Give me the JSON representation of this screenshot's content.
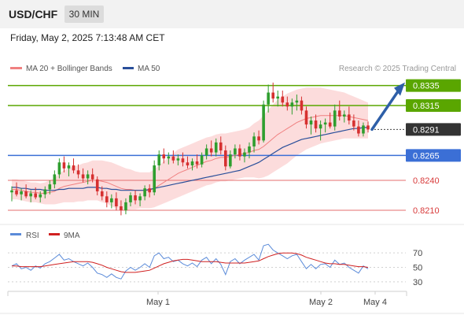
{
  "header": {
    "symbol": "USD/CHF",
    "timeframe": "30 MIN"
  },
  "datetime": "Friday, May 2, 2025 7:13:48 AM CET",
  "legend": {
    "ma20": "MA 20 + Bollinger Bands",
    "ma50": "MA 50",
    "credit": "Research © 2025 Trading Central"
  },
  "rsi_legend": {
    "rsi": "RSI",
    "ma9": "9MA"
  },
  "colors": {
    "resistance": "#5aa600",
    "support": "#3b6fd6",
    "pivot": "#e46f6f",
    "last": "#333333",
    "candle_up": "#2e9e2e",
    "candle_down": "#d63030",
    "ma20": "#f08080",
    "ma50": "#2a4f9a",
    "bands": "#fcd6d6",
    "arrow": "#2e5fa8",
    "rsi": "#5b8bd9",
    "rsi_ma": "#d02020"
  },
  "chart_data": [
    {
      "type": "line",
      "title": "USD/CHF 30 MIN",
      "xlabel": "",
      "ylabel": "",
      "ylim": [
        0.8199,
        0.8345
      ],
      "x_ticks": [
        "May 1",
        "May 2",
        "May 4"
      ],
      "ohlc": [
        [
          0.8228,
          0.8234,
          0.8219,
          0.823
        ],
        [
          0.823,
          0.8238,
          0.8224,
          0.8226
        ],
        [
          0.8226,
          0.8232,
          0.822,
          0.8229
        ],
        [
          0.8229,
          0.8236,
          0.8222,
          0.8224
        ],
        [
          0.8224,
          0.823,
          0.8218,
          0.8227
        ],
        [
          0.8227,
          0.8233,
          0.8221,
          0.8223
        ],
        [
          0.8223,
          0.8229,
          0.8218,
          0.8226
        ],
        [
          0.8226,
          0.8234,
          0.8222,
          0.8231
        ],
        [
          0.8231,
          0.824,
          0.8226,
          0.8236
        ],
        [
          0.8236,
          0.825,
          0.8232,
          0.8246
        ],
        [
          0.8246,
          0.8262,
          0.8242,
          0.8258
        ],
        [
          0.8258,
          0.8264,
          0.8248,
          0.8252
        ],
        [
          0.8252,
          0.8258,
          0.8244,
          0.8255
        ],
        [
          0.8255,
          0.8262,
          0.8247,
          0.825
        ],
        [
          0.825,
          0.8256,
          0.8242,
          0.8246
        ],
        [
          0.8246,
          0.8252,
          0.8238,
          0.8242
        ],
        [
          0.8242,
          0.825,
          0.8236,
          0.8246
        ],
        [
          0.8246,
          0.8252,
          0.8238,
          0.8241
        ],
        [
          0.8241,
          0.8244,
          0.8225,
          0.8229
        ],
        [
          0.8229,
          0.8234,
          0.822,
          0.8224
        ],
        [
          0.8224,
          0.8229,
          0.8213,
          0.8218
        ],
        [
          0.8218,
          0.8226,
          0.8212,
          0.8222
        ],
        [
          0.8222,
          0.8228,
          0.821,
          0.8214
        ],
        [
          0.8214,
          0.822,
          0.8205,
          0.821
        ],
        [
          0.821,
          0.8222,
          0.8206,
          0.8218
        ],
        [
          0.8218,
          0.8228,
          0.8214,
          0.8225
        ],
        [
          0.8225,
          0.823,
          0.8216,
          0.822
        ],
        [
          0.822,
          0.8227,
          0.8214,
          0.8224
        ],
        [
          0.8224,
          0.8235,
          0.822,
          0.8232
        ],
        [
          0.8232,
          0.8236,
          0.8223,
          0.8228
        ],
        [
          0.8228,
          0.826,
          0.8225,
          0.8255
        ],
        [
          0.8255,
          0.827,
          0.825,
          0.8266
        ],
        [
          0.8266,
          0.8272,
          0.8257,
          0.8262
        ],
        [
          0.8262,
          0.8268,
          0.8256,
          0.8264
        ],
        [
          0.8264,
          0.827,
          0.8257,
          0.826
        ],
        [
          0.826,
          0.8266,
          0.8255,
          0.8262
        ],
        [
          0.8262,
          0.8268,
          0.8254,
          0.8258
        ],
        [
          0.8258,
          0.8264,
          0.8252,
          0.8255
        ],
        [
          0.8255,
          0.8262,
          0.825,
          0.8259
        ],
        [
          0.8259,
          0.8266,
          0.8252,
          0.8256
        ],
        [
          0.8256,
          0.8268,
          0.8253,
          0.8265
        ],
        [
          0.8265,
          0.8276,
          0.8261,
          0.8272
        ],
        [
          0.8272,
          0.828,
          0.8264,
          0.8268
        ],
        [
          0.8268,
          0.8282,
          0.8264,
          0.8278
        ],
        [
          0.8278,
          0.8284,
          0.8266,
          0.827
        ],
        [
          0.827,
          0.8275,
          0.825,
          0.8254
        ],
        [
          0.8254,
          0.827,
          0.8252,
          0.8266
        ],
        [
          0.8266,
          0.8276,
          0.8262,
          0.8272
        ],
        [
          0.8272,
          0.8276,
          0.826,
          0.8264
        ],
        [
          0.8264,
          0.8272,
          0.8258,
          0.8268
        ],
        [
          0.8268,
          0.8278,
          0.8262,
          0.8274
        ],
        [
          0.8274,
          0.8288,
          0.8268,
          0.8284
        ],
        [
          0.8284,
          0.829,
          0.8276,
          0.828
        ],
        [
          0.828,
          0.832,
          0.8278,
          0.8316
        ],
        [
          0.8316,
          0.8336,
          0.8308,
          0.8328
        ],
        [
          0.8328,
          0.8338,
          0.8318,
          0.8322
        ],
        [
          0.8322,
          0.833,
          0.8314,
          0.8324
        ],
        [
          0.8324,
          0.833,
          0.8314,
          0.8318
        ],
        [
          0.8318,
          0.8324,
          0.831,
          0.8314
        ],
        [
          0.8314,
          0.8322,
          0.8306,
          0.8318
        ],
        [
          0.8318,
          0.8326,
          0.831,
          0.832
        ],
        [
          0.832,
          0.8324,
          0.8306,
          0.831
        ],
        [
          0.831,
          0.8314,
          0.8292,
          0.8296
        ],
        [
          0.8296,
          0.8304,
          0.8286,
          0.83
        ],
        [
          0.83,
          0.8306,
          0.8288,
          0.8292
        ],
        [
          0.8292,
          0.83,
          0.828,
          0.8296
        ],
        [
          0.8296,
          0.8302,
          0.8288,
          0.8298
        ],
        [
          0.8298,
          0.8308,
          0.8292,
          0.8294
        ],
        [
          0.8294,
          0.8316,
          0.829,
          0.831
        ],
        [
          0.831,
          0.832,
          0.83,
          0.8304
        ],
        [
          0.8304,
          0.831,
          0.8298,
          0.8306
        ],
        [
          0.8306,
          0.8314,
          0.8296,
          0.83
        ],
        [
          0.83,
          0.8306,
          0.829,
          0.8294
        ],
        [
          0.8294,
          0.83,
          0.8284,
          0.8287
        ],
        [
          0.8287,
          0.8298,
          0.8284,
          0.8295
        ],
        [
          0.8295,
          0.8299,
          0.8288,
          0.8291
        ]
      ],
      "series": [
        {
          "name": "MA 20 + Bollinger Bands",
          "values": [
            0.8231,
            0.8231,
            0.823,
            0.8229,
            0.8228,
            0.8228,
            0.8227,
            0.8227,
            0.8228,
            0.8229,
            0.8232,
            0.8234,
            0.8235,
            0.8236,
            0.8237,
            0.8238,
            0.8239,
            0.824,
            0.824,
            0.8239,
            0.8238,
            0.8236,
            0.8234,
            0.8232,
            0.8231,
            0.8231,
            0.823,
            0.823,
            0.823,
            0.823,
            0.8232,
            0.8235,
            0.8238,
            0.8241,
            0.8244,
            0.8247,
            0.8249,
            0.8251,
            0.8253,
            0.8255,
            0.8257,
            0.8259,
            0.826,
            0.8262,
            0.8263,
            0.8263,
            0.8264,
            0.8265,
            0.8266,
            0.8267,
            0.8268,
            0.827,
            0.8271,
            0.8274,
            0.8278,
            0.8282,
            0.8286,
            0.8289,
            0.8292,
            0.8295,
            0.8298,
            0.83,
            0.8302,
            0.8303,
            0.8304,
            0.8305,
            0.8305,
            0.8305,
            0.8305,
            0.8305,
            0.8305,
            0.8304,
            0.8303,
            0.8302,
            0.8301,
            0.83
          ]
        },
        {
          "name": "MA 50",
          "values": [
            0.8233,
            0.8233,
            0.8232,
            0.8232,
            0.8231,
            0.8231,
            0.8231,
            0.823,
            0.823,
            0.823,
            0.8231,
            0.8231,
            0.8232,
            0.8232,
            0.8232,
            0.8232,
            0.8233,
            0.8233,
            0.8233,
            0.8232,
            0.8232,
            0.8231,
            0.8231,
            0.823,
            0.823,
            0.823,
            0.823,
            0.823,
            0.823,
            0.8231,
            0.8232,
            0.8233,
            0.8234,
            0.8235,
            0.8236,
            0.8237,
            0.8238,
            0.8239,
            0.824,
            0.8241,
            0.8242,
            0.8243,
            0.8244,
            0.8245,
            0.8246,
            0.8247,
            0.8248,
            0.8249,
            0.825,
            0.8252,
            0.8254,
            0.8256,
            0.8258,
            0.8261,
            0.8264,
            0.8267,
            0.827,
            0.8273,
            0.8275,
            0.8277,
            0.8279,
            0.8281,
            0.8282,
            0.8283,
            0.8284,
            0.8285,
            0.8286,
            0.8287,
            0.8288,
            0.8289,
            0.829,
            0.8291,
            0.8292,
            0.8292,
            0.8293,
            0.8293
          ]
        }
      ],
      "bollinger_width": [
        0.001,
        0.001,
        0.001,
        0.001,
        0.001,
        0.001,
        0.001,
        0.0011,
        0.0012,
        0.0013,
        0.0015,
        0.0016,
        0.0017,
        0.0018,
        0.0018,
        0.0019,
        0.0019,
        0.002,
        0.002,
        0.0021,
        0.0021,
        0.0022,
        0.0022,
        0.0022,
        0.0021,
        0.002,
        0.0019,
        0.0018,
        0.0018,
        0.0018,
        0.0019,
        0.002,
        0.0021,
        0.0022,
        0.0023,
        0.0024,
        0.0024,
        0.0024,
        0.0024,
        0.0024,
        0.0024,
        0.0024,
        0.0024,
        0.0024,
        0.0024,
        0.0024,
        0.0024,
        0.0024,
        0.0024,
        0.0024,
        0.0025,
        0.0027,
        0.0029,
        0.0031,
        0.0033,
        0.0034,
        0.0035,
        0.0035,
        0.0035,
        0.0034,
        0.0033,
        0.0032,
        0.0031,
        0.003,
        0.0029,
        0.0028,
        0.0027,
        0.0026,
        0.0025,
        0.0024,
        0.0023,
        0.0022,
        0.0021,
        0.002,
        0.0019,
        0.0018
      ],
      "levels": [
        {
          "label": "0.8335",
          "value": 0.8335,
          "kind": "resistance"
        },
        {
          "label": "0.8315",
          "value": 0.8315,
          "kind": "resistance"
        },
        {
          "label": "0.8291",
          "value": 0.8291,
          "kind": "last"
        },
        {
          "label": "0.8265",
          "value": 0.8265,
          "kind": "support"
        },
        {
          "label": "0.8240",
          "value": 0.824,
          "kind": "pivot"
        },
        {
          "label": "0.8210",
          "value": 0.821,
          "kind": "pivot"
        }
      ],
      "forecast_arrow": {
        "from": 0.8291,
        "to": 0.8335
      }
    },
    {
      "type": "line",
      "title": "",
      "ylim": [
        20,
        80
      ],
      "y_ticks": [
        "70",
        "50",
        "30"
      ],
      "guide_levels": [
        70,
        50,
        30
      ],
      "series": [
        {
          "name": "RSI",
          "values": [
            52,
            55,
            48,
            50,
            46,
            52,
            49,
            55,
            58,
            63,
            68,
            60,
            62,
            58,
            55,
            52,
            56,
            50,
            42,
            40,
            36,
            41,
            36,
            34,
            45,
            50,
            46,
            50,
            55,
            50,
            66,
            70,
            62,
            64,
            58,
            60,
            55,
            52,
            56,
            51,
            60,
            64,
            55,
            62,
            54,
            40,
            58,
            62,
            55,
            60,
            64,
            68,
            60,
            80,
            82,
            74,
            70,
            66,
            62,
            66,
            68,
            58,
            48,
            54,
            48,
            54,
            55,
            50,
            60,
            54,
            56,
            50,
            46,
            42,
            52,
            48
          ]
        },
        {
          "name": "9MA",
          "values": [
            52,
            52,
            51,
            51,
            51,
            51,
            51,
            52,
            53,
            54,
            55,
            56,
            57,
            58,
            58,
            58,
            58,
            57,
            55,
            53,
            50,
            48,
            46,
            44,
            43,
            43,
            43,
            44,
            45,
            46,
            49,
            52,
            55,
            57,
            59,
            60,
            61,
            61,
            60,
            59,
            58,
            58,
            58,
            58,
            57,
            56,
            56,
            56,
            56,
            56,
            57,
            58,
            59,
            62,
            65,
            67,
            69,
            70,
            70,
            70,
            69,
            67,
            64,
            62,
            60,
            58,
            56,
            55,
            55,
            54,
            54,
            53,
            52,
            51,
            51,
            50
          ]
        }
      ]
    }
  ]
}
